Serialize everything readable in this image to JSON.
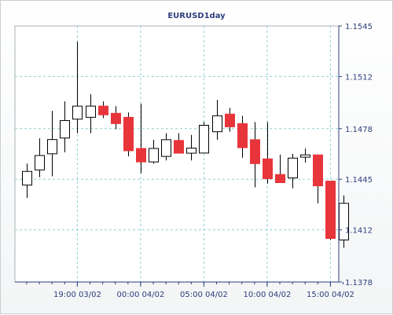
{
  "chart_data": {
    "type": "candlestick",
    "title": "EURUSD1day",
    "ylim": [
      1.1378,
      1.1545
    ],
    "y_ticks": [
      "1.1545",
      "1.1512",
      "1.1478",
      "1.1445",
      "1.1412",
      "1.1378"
    ],
    "x_tick_labels": [
      "19:00 03/02",
      "00:00 04/02",
      "05:00 04/02",
      "10:00 04/02",
      "15:00 04/02"
    ],
    "x_tick_candle_index": [
      4,
      9,
      14,
      19,
      24
    ],
    "grid": true,
    "colors": {
      "bull_fill": "#ffffff",
      "bear_fill": "#e8353b",
      "candle_outline": "#000000",
      "grid": "#8fd0d0",
      "axis": "#2c3e7b"
    },
    "candles": [
      {
        "o": 1.14412,
        "h": 1.14552,
        "l": 1.14328,
        "c": 1.14501
      },
      {
        "o": 1.14511,
        "h": 1.14717,
        "l": 1.14464,
        "c": 1.14605
      },
      {
        "o": 1.14616,
        "h": 1.14896,
        "l": 1.14469,
        "c": 1.14709
      },
      {
        "o": 1.14719,
        "h": 1.14958,
        "l": 1.14626,
        "c": 1.14833
      },
      {
        "o": 1.14842,
        "h": 1.15347,
        "l": 1.1475,
        "c": 1.14927
      },
      {
        "o": 1.14854,
        "h": 1.15005,
        "l": 1.1475,
        "c": 1.14927
      },
      {
        "o": 1.14927,
        "h": 1.14958,
        "l": 1.14849,
        "c": 1.1487
      },
      {
        "o": 1.1488,
        "h": 1.14927,
        "l": 1.14776,
        "c": 1.14813
      },
      {
        "o": 1.14854,
        "h": 1.14885,
        "l": 1.14599,
        "c": 1.14636
      },
      {
        "o": 1.14651,
        "h": 1.14942,
        "l": 1.1449,
        "c": 1.14563
      },
      {
        "o": 1.14563,
        "h": 1.14708,
        "l": 1.14552,
        "c": 1.14651
      },
      {
        "o": 1.14599,
        "h": 1.14751,
        "l": 1.14573,
        "c": 1.14708
      },
      {
        "o": 1.14703,
        "h": 1.14751,
        "l": 1.1462,
        "c": 1.1462
      },
      {
        "o": 1.1462,
        "h": 1.14739,
        "l": 1.14573,
        "c": 1.14653
      },
      {
        "o": 1.14621,
        "h": 1.14823,
        "l": 1.14621,
        "c": 1.14802
      },
      {
        "o": 1.1476,
        "h": 1.14968,
        "l": 1.14708,
        "c": 1.14864
      },
      {
        "o": 1.14875,
        "h": 1.14916,
        "l": 1.1476,
        "c": 1.14792
      },
      {
        "o": 1.14813,
        "h": 1.14864,
        "l": 1.1459,
        "c": 1.14656
      },
      {
        "o": 1.14708,
        "h": 1.14823,
        "l": 1.14397,
        "c": 1.14552
      },
      {
        "o": 1.14583,
        "h": 1.14823,
        "l": 1.14422,
        "c": 1.14454
      },
      {
        "o": 1.14481,
        "h": 1.14611,
        "l": 1.14428,
        "c": 1.14428
      },
      {
        "o": 1.14459,
        "h": 1.14615,
        "l": 1.14391,
        "c": 1.14588
      },
      {
        "o": 1.14594,
        "h": 1.14651,
        "l": 1.14559,
        "c": 1.14609
      },
      {
        "o": 1.14609,
        "h": 1.14609,
        "l": 1.14293,
        "c": 1.14407
      },
      {
        "o": 1.14438,
        "h": 1.14438,
        "l": 1.14054,
        "c": 1.14064
      },
      {
        "o": 1.14054,
        "h": 1.14345,
        "l": 1.14003,
        "c": 1.14293
      }
    ]
  }
}
